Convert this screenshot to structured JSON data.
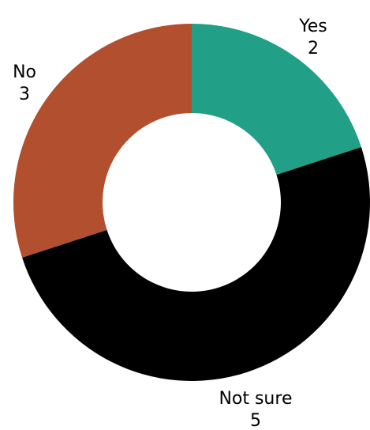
{
  "chart_data": {
    "type": "pie",
    "donut": true,
    "slices": [
      {
        "label": "Yes",
        "value": 2,
        "color": "#229f87"
      },
      {
        "label": "Not sure",
        "value": 5,
        "color": "#000000"
      },
      {
        "label": "No",
        "value": 3,
        "color": "#b24f2e"
      }
    ],
    "start_angle_deg": 0,
    "direction": "clockwise",
    "labels_show_values": true
  }
}
